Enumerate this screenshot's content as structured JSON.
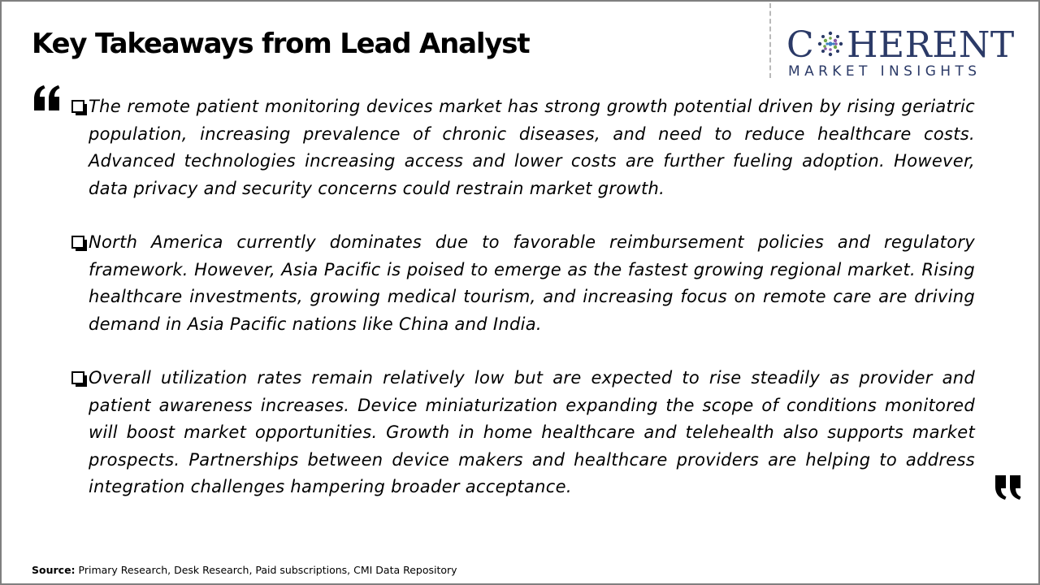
{
  "header": {
    "title": "Key Takeaways from Lead Analyst"
  },
  "logo": {
    "word_before": "C",
    "word_after": "HERENT",
    "subtitle": "MARKET INSIGHTS",
    "color": "#2b3a67"
  },
  "icons": {
    "open_quote": "open-quote-icon",
    "close_quote": "close-quote-icon",
    "bullet": "checkbox-bullet-icon"
  },
  "bullets": [
    {
      "text": "The remote patient monitoring devices market has strong growth potential driven by rising geriatric population, increasing prevalence of chronic diseases, and need to reduce healthcare costs. Advanced technologies increasing access and lower costs are further fueling adoption. However, data privacy and security concerns could restrain market growth."
    },
    {
      "text": "North America currently dominates due to favorable reimbursement policies and regulatory framework. However, Asia Pacific is poised to emerge as the fastest growing regional market. Rising healthcare investments, growing medical tourism, and increasing focus on remote care are driving demand in Asia Pacific nations like China and India."
    },
    {
      "text": "Overall utilization rates remain relatively low but are expected to rise steadily as provider and patient awareness increases. Device miniaturization expanding the scope of conditions monitored will boost market opportunities. Growth in home healthcare and telehealth also supports market prospects. Partnerships between device makers and healthcare providers are helping to address integration challenges hampering broader acceptance."
    }
  ],
  "footer": {
    "source_label": "Source:",
    "source_text": " Primary Research, Desk Research, Paid subscriptions, CMI Data Repository"
  }
}
